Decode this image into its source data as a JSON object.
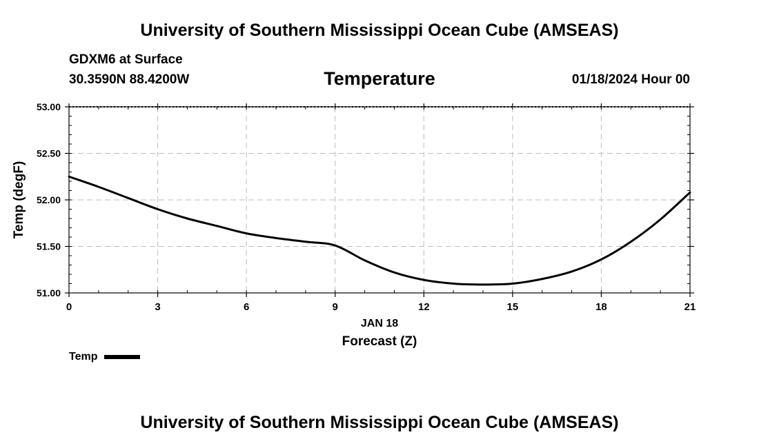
{
  "header": {
    "title": "University of Southern Mississippi Ocean Cube (AMSEAS)",
    "station": "GDXM6 at Surface",
    "coords": "30.3590N  88.4200W",
    "variable": "Temperature",
    "datetime": "01/18/2024 Hour 00"
  },
  "footer": {
    "title": "University of Southern Mississippi Ocean Cube (AMSEAS)"
  },
  "chart_data": {
    "type": "line",
    "title": "Temperature",
    "xlabel": "Forecast (Z)",
    "xsublabel": "JAN 18",
    "ylabel": "Temp (degF)",
    "xlim": [
      0,
      21
    ],
    "ylim": [
      51.0,
      53.0
    ],
    "xticks": [
      0,
      3,
      6,
      9,
      12,
      15,
      18,
      21
    ],
    "yticks": [
      51.0,
      51.5,
      52.0,
      52.5,
      53.0
    ],
    "ytick_labels": [
      "51.00",
      "51.50",
      "52.00",
      "52.50",
      "53.00"
    ],
    "grid": true,
    "series": [
      {
        "name": "Temp",
        "color": "#000000",
        "x": [
          0,
          1,
          2,
          3,
          4,
          5,
          6,
          7,
          8,
          9,
          10,
          11,
          12,
          13,
          14,
          15,
          16,
          17,
          18,
          19,
          20,
          21
        ],
        "values": [
          52.25,
          52.14,
          52.02,
          51.9,
          51.8,
          51.72,
          51.64,
          51.59,
          51.55,
          51.51,
          51.35,
          51.22,
          51.14,
          51.1,
          51.09,
          51.1,
          51.15,
          51.23,
          51.36,
          51.55,
          51.79,
          52.08
        ]
      }
    ],
    "legend": {
      "label": "Temp",
      "placement": "bottom-left"
    }
  }
}
